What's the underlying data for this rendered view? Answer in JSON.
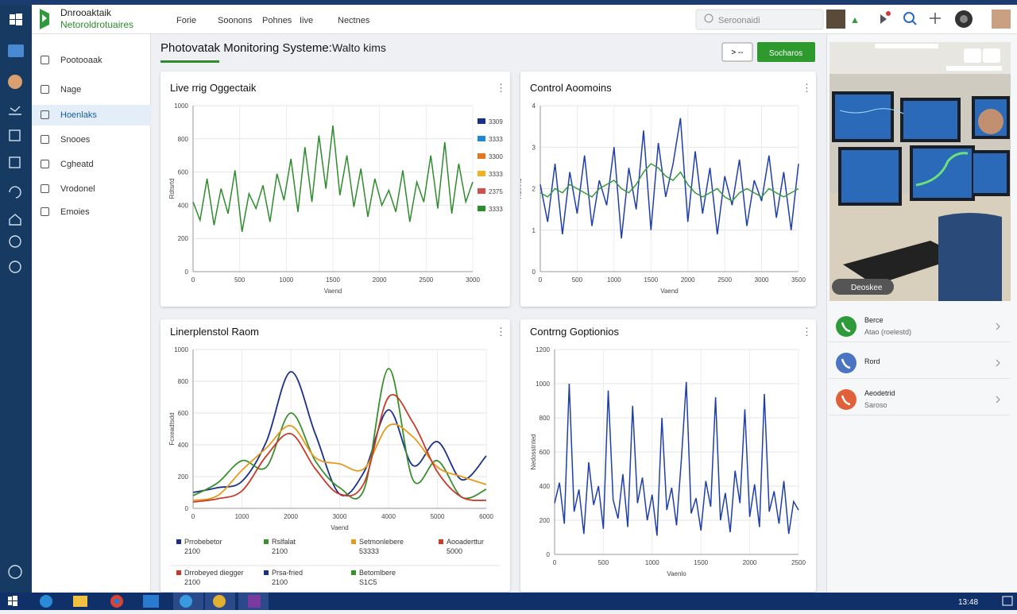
{
  "nav": {
    "logo_title": "Dnrooaktaik",
    "logo_subtitle": "Netoroldrotuaires",
    "items": [
      "Forie",
      "Soonons",
      "Pohnes",
      "Iive",
      "Nectnes"
    ],
    "search": "Seroonaidi"
  },
  "sidebar": {
    "items": [
      "Pootooaak",
      "Nage",
      "Hoenlaks",
      "Snooes",
      "Cgheatd",
      "Vrodonel",
      "Emoies"
    ],
    "active": 2
  },
  "header": {
    "title": "Photovatak Monitoring Systeme:",
    "subtitle": "Walto kims",
    "secondary_button": "> --",
    "primary_button": "Socharos"
  },
  "photo": {
    "caption": "Deoskee"
  },
  "contacts": [
    {
      "name": "Berce",
      "detail": "Atao (roelestd)",
      "color": "#2e9a3a"
    },
    {
      "name": "Rord",
      "detail": null,
      "color": "#4a74c4"
    },
    {
      "name": "Aeodetrid",
      "detail": "Saroso",
      "color": "#e0603a"
    }
  ],
  "taskbar": {
    "clock": "13:48"
  },
  "chart_data": [
    {
      "type": "line",
      "title": "Live rrig Oggectaik",
      "x_label": "Vaend",
      "y_label": "Rdtsrtd",
      "grid": true,
      "legend": "right",
      "x": [
        0,
        75,
        150,
        225,
        300,
        375,
        450,
        525,
        600,
        675,
        750,
        825,
        900,
        975,
        1050,
        1125,
        1200,
        1275,
        1350,
        1425,
        1500,
        1575,
        1650,
        1725,
        1800,
        1875,
        1950,
        2025,
        2100,
        2175,
        2250,
        2325,
        2400,
        2475,
        2550,
        2625,
        2700,
        2775,
        2850,
        2925,
        3000
      ],
      "xlim": [
        0,
        3000
      ],
      "xticks": [
        0,
        500,
        1000,
        1500,
        2000,
        2500,
        3000
      ],
      "ylim": [
        0,
        1000
      ],
      "yticks": [
        0,
        200,
        400,
        600,
        800,
        1000
      ],
      "series": [
        {
          "name": "3333",
          "color": "#2e8b2e",
          "values": [
            420,
            310,
            560,
            280,
            500,
            350,
            610,
            240,
            470,
            380,
            520,
            300,
            590,
            430,
            680,
            360,
            750,
            420,
            820,
            500,
            880,
            460,
            700,
            390,
            620,
            330,
            560,
            400,
            490,
            360,
            610,
            300,
            540,
            420,
            700,
            380,
            780,
            350,
            650,
            420,
            540
          ]
        }
      ],
      "legend_entries": [
        {
          "label": "3309",
          "color": "#1a2f8a"
        },
        {
          "label": "3333",
          "color": "#1e88d8"
        },
        {
          "label": "3300",
          "color": "#e6781c"
        },
        {
          "label": "3333",
          "color": "#f0b020"
        },
        {
          "label": "2375",
          "color": "#d05050"
        }
      ]
    },
    {
      "type": "line",
      "title": "Control Aoomoins",
      "x_label": "Vaend",
      "y_label": "Rdtnrtd",
      "grid": true,
      "x": [
        0,
        100,
        200,
        300,
        400,
        500,
        600,
        700,
        800,
        900,
        1000,
        1100,
        1200,
        1300,
        1400,
        1500,
        1600,
        1700,
        1800,
        1900,
        2000,
        2100,
        2200,
        2300,
        2400,
        2500,
        2600,
        2700,
        2800,
        2900,
        3000,
        3100,
        3200,
        3300,
        3400,
        3500
      ],
      "xlim": [
        0,
        3500
      ],
      "xticks": [
        0,
        500,
        1000,
        1500,
        2000,
        2500,
        3000,
        3500
      ],
      "ylim": [
        0,
        4
      ],
      "yticks": [
        0,
        1,
        2,
        3,
        4
      ],
      "series": [
        {
          "color": "#1f3fa8",
          "values": [
            2.1,
            1.2,
            2.6,
            0.9,
            2.4,
            1.4,
            2.8,
            1.1,
            2.2,
            1.6,
            3.0,
            0.8,
            2.5,
            1.5,
            3.4,
            1.0,
            3.1,
            1.8,
            2.6,
            3.7,
            1.2,
            2.9,
            1.4,
            2.5,
            0.9,
            2.3,
            1.6,
            2.7,
            1.1,
            2.2,
            1.7,
            2.8,
            1.3,
            2.4,
            1.0,
            2.6
          ]
        },
        {
          "color": "#3a9a3a",
          "values": [
            1.9,
            1.8,
            2.0,
            1.9,
            2.1,
            2.0,
            1.9,
            1.8,
            2.0,
            2.1,
            2.2,
            2.0,
            1.9,
            2.1,
            2.4,
            2.6,
            2.5,
            2.3,
            2.2,
            2.4,
            2.1,
            1.9,
            1.8,
            1.9,
            2.0,
            1.8,
            1.7,
            1.9,
            2.0,
            1.9,
            1.8,
            2.0,
            1.9,
            1.8,
            1.9,
            2.0
          ]
        }
      ]
    },
    {
      "type": "line",
      "title": "Linerplenstol Raom",
      "x_label": "Vaend",
      "y_label": "Fcxeadtsdd",
      "grid": true,
      "smooth": true,
      "legend": "bottom",
      "x": [
        0,
        500,
        1000,
        1500,
        2000,
        2500,
        3000,
        3500,
        4000,
        4500,
        5000,
        5500,
        6000
      ],
      "xlim": [
        0,
        6000
      ],
      "xticks": [
        0,
        1000,
        2000,
        3000,
        4000,
        5000,
        6000
      ],
      "ylim": [
        0,
        1000
      ],
      "yticks": [
        0,
        200,
        400,
        600,
        800,
        1000
      ],
      "series": [
        {
          "name": "Prrobebetor",
          "note": "2100",
          "color": "#1a2f8a",
          "values": [
            100,
            130,
            170,
            420,
            860,
            470,
            90,
            230,
            620,
            270,
            420,
            180,
            330
          ]
        },
        {
          "name": "Rslfalat",
          "note": "2100",
          "color": "#3a8f2e",
          "values": [
            80,
            160,
            300,
            260,
            600,
            300,
            130,
            120,
            880,
            180,
            300,
            70,
            120
          ]
        },
        {
          "name": "Setmonlebere",
          "note": "53333",
          "color": "#e69a1c",
          "values": [
            50,
            80,
            240,
            380,
            520,
            320,
            280,
            250,
            520,
            450,
            260,
            200,
            150
          ]
        },
        {
          "name": "Aooaderttur",
          "note": "5000",
          "color": "#c83a2a",
          "values": [
            40,
            60,
            110,
            330,
            470,
            250,
            90,
            160,
            700,
            540,
            230,
            70,
            50
          ]
        }
      ],
      "legend_entries": [
        {
          "label": "Drrobeyed diegger",
          "note": "2100",
          "color": "#c83a2a"
        },
        {
          "label": "Prsa-fried",
          "note": "2100",
          "color": "#1a2f8a"
        },
        {
          "label": "Betomlbere",
          "note": "S1C5",
          "color": "#3a8f2e"
        }
      ]
    },
    {
      "type": "line",
      "title": "Contrng Goptionios",
      "x_label": "Vaenlo",
      "y_label": "Nedosstnted",
      "grid": true,
      "x": [
        0,
        50,
        100,
        150,
        200,
        250,
        300,
        350,
        400,
        450,
        500,
        550,
        600,
        650,
        700,
        750,
        800,
        850,
        900,
        950,
        1000,
        1050,
        1100,
        1150,
        1200,
        1250,
        1300,
        1350,
        1400,
        1450,
        1500,
        1550,
        1600,
        1650,
        1700,
        1750,
        1800,
        1850,
        1900,
        1950,
        2000,
        2050,
        2100,
        2150,
        2200,
        2250,
        2300,
        2350,
        2400,
        2450,
        2500
      ],
      "xlim": [
        0,
        2500
      ],
      "xticks": [
        0,
        500,
        1000,
        1500,
        2000,
        2500
      ],
      "ylim": [
        0,
        1200
      ],
      "yticks": [
        0,
        200,
        400,
        600,
        800,
        1000,
        1200
      ],
      "series": [
        {
          "color": "#1f3fa8",
          "values": [
            300,
            420,
            180,
            1000,
            250,
            380,
            120,
            540,
            290,
            400,
            150,
            960,
            320,
            210,
            470,
            160,
            870,
            300,
            450,
            200,
            350,
            110,
            800,
            260,
            390,
            170,
            560,
            1010,
            240,
            330,
            140,
            430,
            280,
            920,
            200,
            360,
            130,
            490,
            300,
            850,
            220,
            410,
            160,
            940,
            250,
            370,
            180,
            430,
            120,
            310,
            260
          ]
        }
      ]
    }
  ]
}
